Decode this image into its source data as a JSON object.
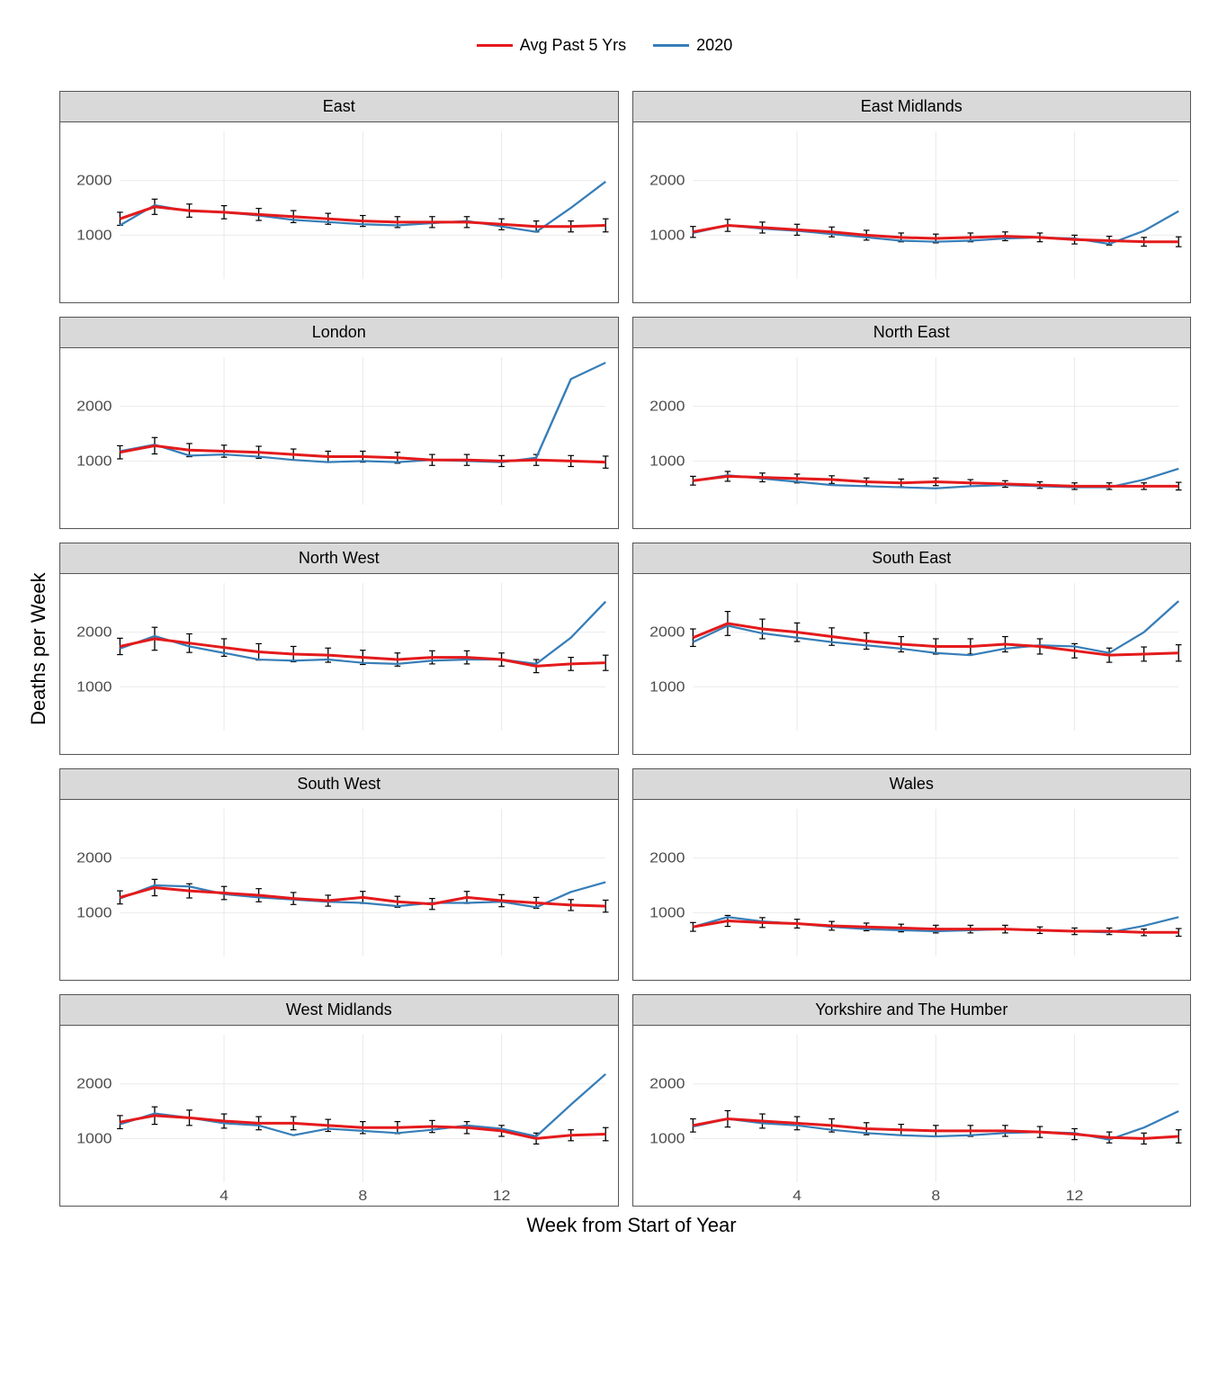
{
  "legend": {
    "series1": {
      "label": "Avg Past 5 Yrs",
      "color": "#e41a1c"
    },
    "series2": {
      "label": "2020",
      "color": "#377eb8"
    }
  },
  "y_axis_label": "Deaths per Week",
  "x_axis_label": "Week from Start of Year",
  "chart_style": {
    "type": "line",
    "facet_cols": 2,
    "facet_rows": 5,
    "background_color": "#ffffff",
    "panel_bg": "#ffffff",
    "strip_bg": "#d9d9d9",
    "grid_color": "#ebebeb",
    "border_color": "#4d4d4d",
    "text_color": "#333333",
    "line_width_red": 3,
    "line_width_blue": 2.2,
    "error_bar_color": "#000000",
    "error_bar_width": 1.2,
    "error_bar_cap": 6,
    "title_fontsize": 18,
    "axis_label_fontsize": 22,
    "tick_fontsize": 16,
    "xlim": [
      1,
      15
    ],
    "ylim": [
      200,
      2900
    ],
    "xticks": [
      4,
      8,
      12
    ],
    "yticks": [
      1000,
      2000
    ]
  },
  "panels": [
    {
      "title": "East",
      "weeks": [
        1,
        2,
        3,
        4,
        5,
        6,
        7,
        8,
        9,
        10,
        11,
        12,
        13,
        14,
        15
      ],
      "avg": [
        1300,
        1520,
        1450,
        1420,
        1380,
        1340,
        1300,
        1260,
        1240,
        1240,
        1240,
        1200,
        1160,
        1160,
        1180
      ],
      "avg_err": [
        120,
        140,
        120,
        120,
        110,
        110,
        100,
        100,
        100,
        100,
        100,
        100,
        100,
        100,
        120
      ],
      "y2020": [
        1180,
        1550,
        1440,
        1420,
        1360,
        1280,
        1240,
        1200,
        1180,
        1220,
        1260,
        1160,
        1060,
        1500,
        1980
      ]
    },
    {
      "title": "East Midlands",
      "weeks": [
        1,
        2,
        3,
        4,
        5,
        6,
        7,
        8,
        9,
        10,
        11,
        12,
        13,
        14,
        15
      ],
      "avg": [
        1060,
        1180,
        1140,
        1100,
        1060,
        1000,
        960,
        940,
        960,
        980,
        960,
        920,
        900,
        880,
        880
      ],
      "avg_err": [
        100,
        110,
        100,
        100,
        90,
        90,
        80,
        80,
        80,
        80,
        80,
        80,
        80,
        80,
        90
      ],
      "y2020": [
        1040,
        1180,
        1120,
        1080,
        1020,
        960,
        900,
        880,
        900,
        940,
        960,
        940,
        840,
        1080,
        1440
      ]
    },
    {
      "title": "London",
      "weeks": [
        1,
        2,
        3,
        4,
        5,
        6,
        7,
        8,
        9,
        10,
        11,
        12,
        13,
        14,
        15
      ],
      "avg": [
        1160,
        1280,
        1200,
        1180,
        1160,
        1120,
        1080,
        1080,
        1060,
        1020,
        1020,
        1000,
        1020,
        1000,
        980
      ],
      "avg_err": [
        120,
        150,
        120,
        110,
        110,
        100,
        100,
        100,
        100,
        100,
        100,
        100,
        100,
        100,
        110
      ],
      "y2020": [
        1180,
        1300,
        1100,
        1120,
        1080,
        1020,
        980,
        1000,
        980,
        1020,
        1000,
        980,
        1060,
        2500,
        2800
      ]
    },
    {
      "title": "North East",
      "weeks": [
        1,
        2,
        3,
        4,
        5,
        6,
        7,
        8,
        9,
        10,
        11,
        12,
        13,
        14,
        15
      ],
      "avg": [
        640,
        720,
        700,
        680,
        660,
        620,
        600,
        620,
        600,
        580,
        560,
        540,
        540,
        540,
        540
      ],
      "avg_err": [
        80,
        90,
        80,
        80,
        70,
        70,
        70,
        70,
        60,
        60,
        60,
        60,
        60,
        60,
        70
      ],
      "y2020": [
        640,
        740,
        680,
        620,
        560,
        540,
        520,
        500,
        540,
        560,
        540,
        520,
        520,
        660,
        860
      ]
    },
    {
      "title": "North West",
      "weeks": [
        1,
        2,
        3,
        4,
        5,
        6,
        7,
        8,
        9,
        10,
        11,
        12,
        13,
        14,
        15
      ],
      "avg": [
        1740,
        1880,
        1800,
        1720,
        1640,
        1600,
        1580,
        1540,
        1500,
        1540,
        1540,
        1500,
        1380,
        1420,
        1440
      ],
      "avg_err": [
        150,
        210,
        170,
        160,
        150,
        140,
        130,
        130,
        120,
        120,
        120,
        120,
        120,
        120,
        140
      ],
      "y2020": [
        1700,
        1930,
        1740,
        1620,
        1500,
        1480,
        1500,
        1440,
        1420,
        1480,
        1500,
        1500,
        1420,
        1900,
        2560
      ]
    },
    {
      "title": "South East",
      "weeks": [
        1,
        2,
        3,
        4,
        5,
        6,
        7,
        8,
        9,
        10,
        11,
        12,
        13,
        14,
        15
      ],
      "avg": [
        1900,
        2160,
        2060,
        2000,
        1920,
        1840,
        1780,
        1740,
        1740,
        1780,
        1740,
        1660,
        1580,
        1600,
        1620
      ],
      "avg_err": [
        160,
        220,
        180,
        170,
        160,
        150,
        140,
        140,
        140,
        140,
        140,
        130,
        130,
        130,
        150
      ],
      "y2020": [
        1820,
        2120,
        1980,
        1900,
        1820,
        1760,
        1700,
        1620,
        1580,
        1700,
        1760,
        1740,
        1620,
        2000,
        2570
      ]
    },
    {
      "title": "South West",
      "weeks": [
        1,
        2,
        3,
        4,
        5,
        6,
        7,
        8,
        9,
        10,
        11,
        12,
        13,
        14,
        15
      ],
      "avg": [
        1280,
        1460,
        1400,
        1360,
        1320,
        1260,
        1220,
        1280,
        1200,
        1160,
        1280,
        1220,
        1180,
        1140,
        1120
      ],
      "avg_err": [
        120,
        150,
        130,
        120,
        120,
        110,
        100,
        110,
        100,
        100,
        110,
        110,
        100,
        100,
        110
      ],
      "y2020": [
        1260,
        1500,
        1480,
        1340,
        1280,
        1240,
        1200,
        1180,
        1120,
        1180,
        1180,
        1200,
        1100,
        1380,
        1560
      ]
    },
    {
      "title": "Wales",
      "weeks": [
        1,
        2,
        3,
        4,
        5,
        6,
        7,
        8,
        9,
        10,
        11,
        12,
        13,
        14,
        15
      ],
      "avg": [
        740,
        850,
        820,
        800,
        760,
        740,
        720,
        700,
        700,
        700,
        680,
        660,
        660,
        640,
        640
      ],
      "avg_err": [
        80,
        100,
        90,
        80,
        80,
        70,
        70,
        70,
        70,
        70,
        60,
        60,
        60,
        60,
        70
      ],
      "y2020": [
        740,
        920,
        840,
        800,
        740,
        700,
        680,
        660,
        680,
        700,
        680,
        660,
        640,
        760,
        920
      ]
    },
    {
      "title": "West Midlands",
      "weeks": [
        1,
        2,
        3,
        4,
        5,
        6,
        7,
        8,
        9,
        10,
        11,
        12,
        13,
        14,
        15
      ],
      "avg": [
        1300,
        1420,
        1380,
        1320,
        1280,
        1280,
        1240,
        1200,
        1200,
        1220,
        1200,
        1140,
        1000,
        1060,
        1080
      ],
      "avg_err": [
        120,
        160,
        140,
        130,
        120,
        120,
        110,
        110,
        110,
        110,
        110,
        100,
        100,
        100,
        120
      ],
      "y2020": [
        1260,
        1460,
        1380,
        1280,
        1240,
        1060,
        1180,
        1140,
        1100,
        1160,
        1240,
        1180,
        1040,
        1620,
        2180
      ]
    },
    {
      "title": "Yorkshire and The Humber",
      "weeks": [
        1,
        2,
        3,
        4,
        5,
        6,
        7,
        8,
        9,
        10,
        11,
        12,
        13,
        14,
        15
      ],
      "avg": [
        1240,
        1360,
        1320,
        1280,
        1240,
        1180,
        1160,
        1140,
        1140,
        1140,
        1120,
        1080,
        1020,
        1000,
        1040
      ],
      "avg_err": [
        120,
        150,
        130,
        120,
        120,
        110,
        100,
        100,
        100,
        100,
        100,
        100,
        100,
        100,
        120
      ],
      "y2020": [
        1220,
        1360,
        1280,
        1240,
        1160,
        1100,
        1060,
        1040,
        1060,
        1100,
        1120,
        1100,
        980,
        1200,
        1500
      ]
    }
  ]
}
